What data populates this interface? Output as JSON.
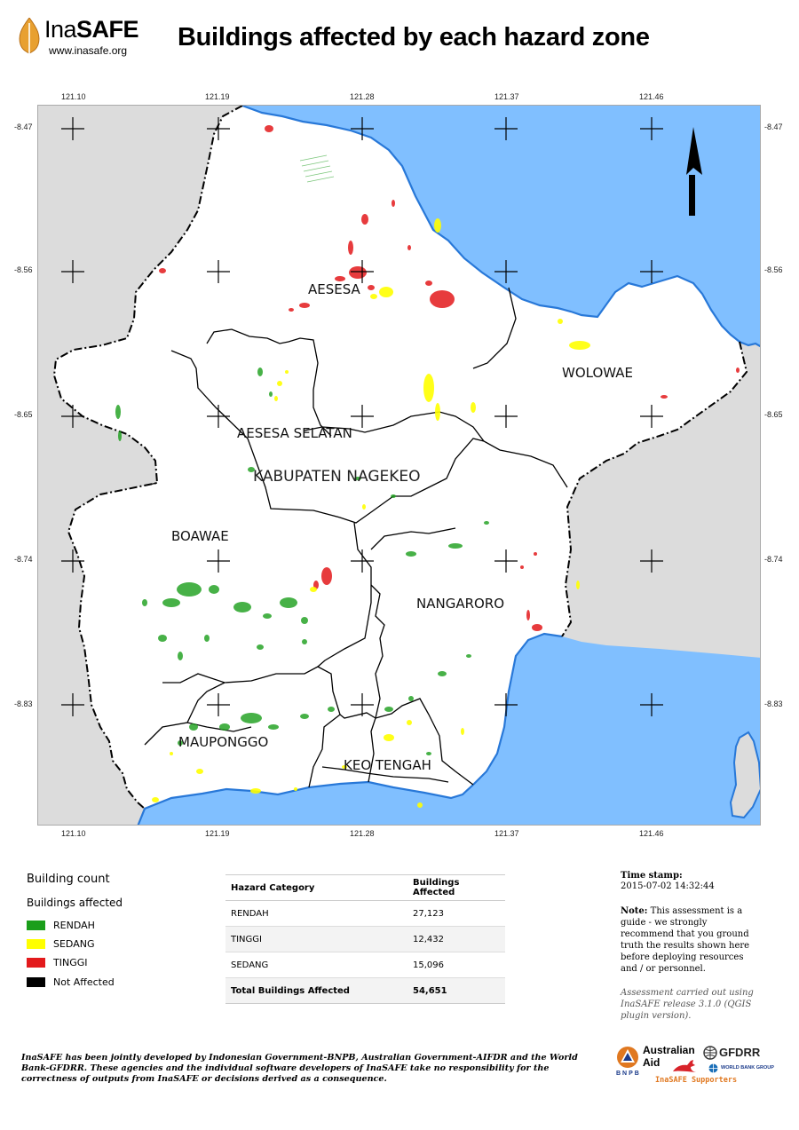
{
  "header": {
    "logo_ina": "Ina",
    "logo_safe": "SAFE",
    "logo_url": "www.inasafe.org",
    "title": "Buildings affected by each hazard zone"
  },
  "map": {
    "colors": {
      "sea": "#80bfff",
      "land_outside": "#dcdcdc",
      "land_study": "#ffffff",
      "coast": "#2878d8",
      "boundary": "#000000"
    },
    "lon_ticks": [
      "121.10",
      "121.19",
      "121.28",
      "121.37",
      "121.46"
    ],
    "lat_ticks": [
      "-8.47",
      "-8.56",
      "-8.65",
      "-8.74",
      "-8.83"
    ],
    "north_arrow_icon": "north-arrow-icon",
    "region_labels": [
      "AESESA",
      "WOLOWAE",
      "AESESA SELATAN",
      "KABUPATEN NAGEKEO",
      "BOAWAE",
      "NANGARORO",
      "MAUPONGGO",
      "KEO TENGAH"
    ]
  },
  "legend": {
    "title": "Building count",
    "subtitle": "Buildings affected",
    "items": [
      {
        "label": "RENDAH",
        "color": "#1a9e1a"
      },
      {
        "label": "SEDANG",
        "color": "#ffff00"
      },
      {
        "label": "TINGGI",
        "color": "#e31a1c"
      },
      {
        "label": "Not Affected",
        "color": "#000000"
      }
    ]
  },
  "table": {
    "headers": [
      "Hazard Category",
      "Buildings Affected"
    ],
    "rows": [
      [
        "RENDAH",
        "27,123"
      ],
      [
        "TINGGI",
        "12,432"
      ],
      [
        "SEDANG",
        "15,096"
      ]
    ],
    "total": [
      "Total Buildings Affected",
      "54,651"
    ]
  },
  "notes": {
    "timestamp_label": "Time stamp:",
    "timestamp": "2015-07-02 14:32:44",
    "note_label": "Note:",
    "note_text": "This assessment is a guide - we strongly recommend that you ground truth the results shown here before deploying resources and / or personnel.",
    "version_text": "Assessment carried out using InaSAFE release 3.1.0 (QGIS plugin version)."
  },
  "footer": {
    "disclaimer": "InaSAFE has been jointly developed by Indonesian Government-BNPB, Australian Government-AIFDR and the World Bank-GFDRR. These agencies and the individual software developers of InaSAFE take no responsibility for the correctness of outputs from InaSAFE or decisions derived as a consequence.",
    "logo_aid_1": "Australian",
    "logo_aid_2": "Aid",
    "logo_bnpb": "BNPB",
    "logo_gfdrr": "GFDRR",
    "logo_worldbank": "WORLD BANK GROUP",
    "supporters": "InaSAFE Supporters"
  }
}
